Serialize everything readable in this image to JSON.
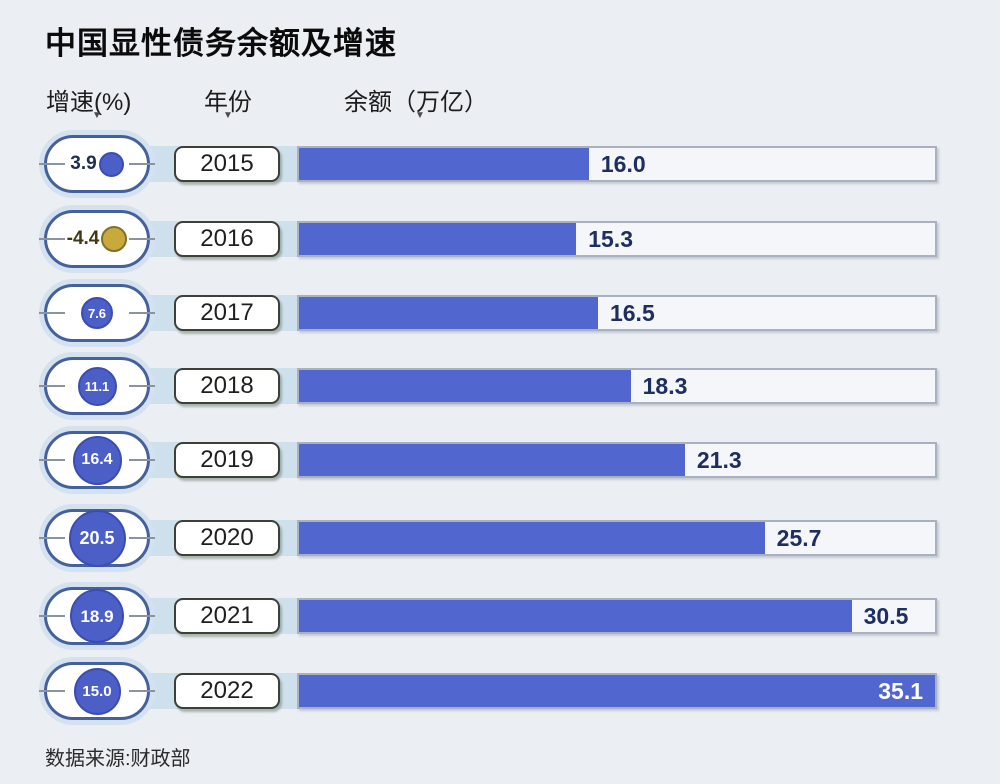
{
  "title": "中国显性债务余额及增速",
  "source": "数据来源:财政部",
  "columns": {
    "growth": "增速(%)",
    "year": "年份",
    "balance": "余额（万亿）"
  },
  "header_pointer_icon": "▼",
  "colors": {
    "background": "#ebeef3",
    "band": "#cfe0ed",
    "bar_fill": "#5266cf",
    "track_background": "#f4f6f9",
    "track_border": "#a9b1c0",
    "value_text": "#1d2e60",
    "pill_border": "#44619c",
    "pill_halo": "#d4e2f0",
    "bubble_blue": "#4c5fc6",
    "bubble_yellow": "#c8a93c"
  },
  "chart_data": {
    "type": "bar",
    "orientation": "horizontal",
    "title": "中国显性债务余额及增速",
    "categories": [
      "2015",
      "2016",
      "2017",
      "2018",
      "2019",
      "2020",
      "2021",
      "2022"
    ],
    "series": [
      {
        "name": "余额（万亿）",
        "values": [
          16.0,
          15.3,
          16.5,
          18.3,
          21.3,
          25.7,
          30.5,
          35.1
        ]
      },
      {
        "name": "增速(%)",
        "values": [
          3.9,
          -4.4,
          7.6,
          11.1,
          16.4,
          20.5,
          18.9,
          15.0
        ]
      }
    ],
    "xlim": [
      0,
      35.1
    ],
    "grid": false,
    "legend_position": "none",
    "source": "数据来源:财政部"
  },
  "rows": [
    {
      "year": "2015",
      "growth": "3.9",
      "growth_value": 3.9,
      "balance": "16.0",
      "balance_value": 16.0,
      "bubble_color": "#4c5fc6",
      "bubble_border": "#3a4db4",
      "growth_text_color": "#222d52"
    },
    {
      "year": "2016",
      "growth": "-4.4",
      "growth_value": -4.4,
      "balance": "15.3",
      "balance_value": 15.3,
      "bubble_color": "#c8a93c",
      "bubble_border": "#80702a",
      "growth_text_color": "#3f3a15"
    },
    {
      "year": "2017",
      "growth": "7.6",
      "growth_value": 7.6,
      "balance": "16.5",
      "balance_value": 16.5,
      "bubble_color": "#4c5fc6",
      "bubble_border": "#3a4db4",
      "growth_text_color": "#ffffff"
    },
    {
      "year": "2018",
      "growth": "11.1",
      "growth_value": 11.1,
      "balance": "18.3",
      "balance_value": 18.3,
      "bubble_color": "#4c5fc6",
      "bubble_border": "#3a4db4",
      "growth_text_color": "#ffffff"
    },
    {
      "year": "2019",
      "growth": "16.4",
      "growth_value": 16.4,
      "balance": "21.3",
      "balance_value": 21.3,
      "bubble_color": "#4c5fc6",
      "bubble_border": "#3a4db4",
      "growth_text_color": "#ffffff"
    },
    {
      "year": "2020",
      "growth": "20.5",
      "growth_value": 20.5,
      "balance": "25.7",
      "balance_value": 25.7,
      "bubble_color": "#4c5fc6",
      "bubble_border": "#3a4db4",
      "growth_text_color": "#ffffff"
    },
    {
      "year": "2021",
      "growth": "18.9",
      "growth_value": 18.9,
      "balance": "30.5",
      "balance_value": 30.5,
      "bubble_color": "#4c5fc6",
      "bubble_border": "#3a4db4",
      "growth_text_color": "#ffffff"
    },
    {
      "year": "2022",
      "growth": "15.0",
      "growth_value": 15.0,
      "balance": "35.1",
      "balance_value": 35.1,
      "bubble_color": "#4c5fc6",
      "bubble_border": "#3a4db4",
      "growth_text_color": "#ffffff"
    }
  ]
}
